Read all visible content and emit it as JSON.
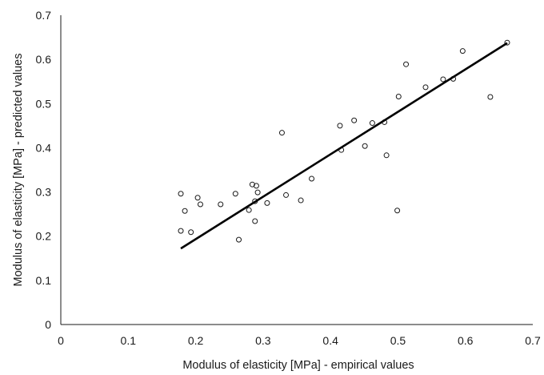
{
  "chart_data": {
    "type": "scatter",
    "title": "",
    "xlabel": "Modulus of elasticity [MPa] - empirical values",
    "ylabel": "Modulus of elasticity [MPa] - predicted values",
    "xlim": [
      0,
      0.7
    ],
    "ylim": [
      0,
      0.7
    ],
    "xticks": [
      "0",
      "0.1",
      "0.2",
      "0.3",
      "0.4",
      "0.5",
      "0.6",
      "0.7"
    ],
    "yticks": [
      "0",
      "0.1",
      "0.2",
      "0.3",
      "0.4",
      "0.5",
      "0.6",
      "0.7"
    ],
    "grid": false,
    "legend": "none",
    "colors": {
      "marker": "#1a1a1a",
      "trendline": "#000000",
      "axes": "#1a1a1a"
    },
    "series": [
      {
        "points": [
          {
            "x": 0.178,
            "y": 0.296
          },
          {
            "x": 0.178,
            "y": 0.212
          },
          {
            "x": 0.184,
            "y": 0.257
          },
          {
            "x": 0.193,
            "y": 0.209
          },
          {
            "x": 0.203,
            "y": 0.287
          },
          {
            "x": 0.207,
            "y": 0.272
          },
          {
            "x": 0.237,
            "y": 0.272
          },
          {
            "x": 0.259,
            "y": 0.296
          },
          {
            "x": 0.264,
            "y": 0.192
          },
          {
            "x": 0.279,
            "y": 0.259
          },
          {
            "x": 0.284,
            "y": 0.317
          },
          {
            "x": 0.288,
            "y": 0.234
          },
          {
            "x": 0.288,
            "y": 0.279
          },
          {
            "x": 0.29,
            "y": 0.314
          },
          {
            "x": 0.292,
            "y": 0.299
          },
          {
            "x": 0.306,
            "y": 0.275
          },
          {
            "x": 0.328,
            "y": 0.434
          },
          {
            "x": 0.334,
            "y": 0.293
          },
          {
            "x": 0.356,
            "y": 0.281
          },
          {
            "x": 0.372,
            "y": 0.33
          },
          {
            "x": 0.414,
            "y": 0.45
          },
          {
            "x": 0.416,
            "y": 0.395
          },
          {
            "x": 0.435,
            "y": 0.462
          },
          {
            "x": 0.451,
            "y": 0.404
          },
          {
            "x": 0.462,
            "y": 0.456
          },
          {
            "x": 0.48,
            "y": 0.458
          },
          {
            "x": 0.483,
            "y": 0.383
          },
          {
            "x": 0.499,
            "y": 0.258
          },
          {
            "x": 0.501,
            "y": 0.516
          },
          {
            "x": 0.512,
            "y": 0.589
          },
          {
            "x": 0.541,
            "y": 0.537
          },
          {
            "x": 0.567,
            "y": 0.555
          },
          {
            "x": 0.582,
            "y": 0.556
          },
          {
            "x": 0.596,
            "y": 0.619
          },
          {
            "x": 0.637,
            "y": 0.515
          },
          {
            "x": 0.662,
            "y": 0.638
          }
        ]
      }
    ],
    "trendline": {
      "x": [
        0.178,
        0.662
      ],
      "y": [
        0.172,
        0.637
      ]
    }
  }
}
